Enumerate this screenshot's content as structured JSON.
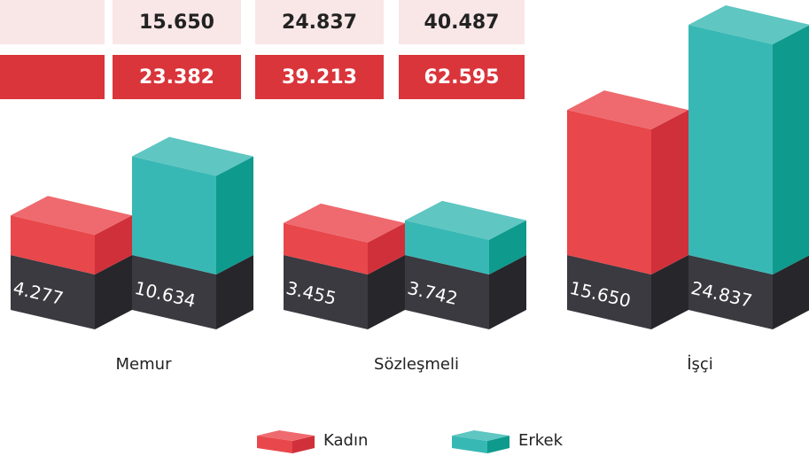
{
  "table": {
    "rows": [
      [
        "15.650",
        "24.837",
        "40.487"
      ],
      [
        "23.382",
        "39.213",
        "62.595"
      ]
    ]
  },
  "chart_data": {
    "type": "bar3d",
    "categories": [
      "Memur",
      "Sözleşmeli",
      "İşçi"
    ],
    "series": [
      {
        "name": "Kadın",
        "color": "#e8474b",
        "values": [
          4277,
          3455,
          15650
        ],
        "value_labels": [
          "4.277",
          "3.455",
          "15.650"
        ]
      },
      {
        "name": "Erkek",
        "color": "#38b8b4",
        "values": [
          10634,
          3742,
          24837
        ],
        "value_labels": [
          "10.634",
          "3.742",
          "24.837"
        ]
      }
    ]
  }
}
